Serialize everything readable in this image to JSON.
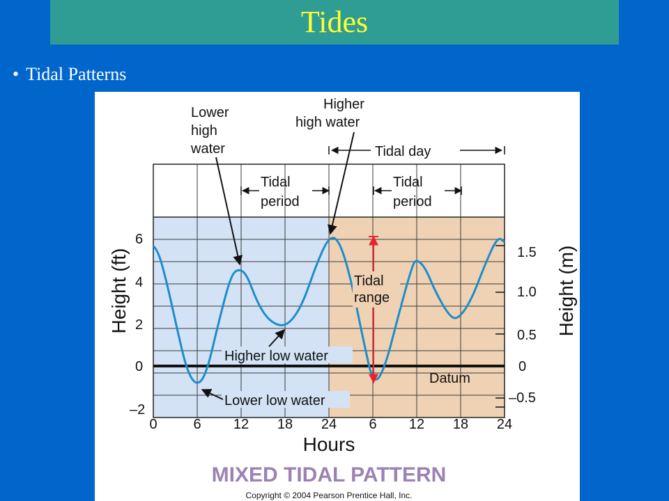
{
  "slide": {
    "title": "Tides",
    "bullet": "Tidal Patterns"
  },
  "figure": {
    "annotations": {
      "lower_high_water": [
        "Lower",
        "high",
        "water"
      ],
      "higher_high_water": [
        "Higher",
        "high water"
      ],
      "tidal_day": "Tidal day",
      "tidal_period": [
        "Tidal",
        "period"
      ],
      "tidal_range": [
        "Tidal",
        "range"
      ],
      "higher_low_water": "Higher low water",
      "lower_low_water": "Lower low water",
      "datum": "Datum"
    },
    "left_axis_label": "Height (ft)",
    "right_axis_label": "Height (m)",
    "x_axis_label": "Hours",
    "left_ticks": [
      "6",
      "4",
      "2",
      "0",
      "–2"
    ],
    "right_ticks": [
      "1.5",
      "1.0",
      "0.5",
      "0",
      "–0.5"
    ],
    "x_ticks": [
      "0",
      "6",
      "12",
      "18",
      "24",
      "6",
      "12",
      "18",
      "24"
    ],
    "pattern_title": "MIXED TIDAL PATTERN",
    "copyright": "Copyright © 2004 Pearson Prentice Hall, Inc."
  },
  "colors": {
    "background": "#0066cc",
    "title_bar": "#2f9d93",
    "title_text": "#ffff33",
    "day1_fill": "#d3e3f5",
    "day2_fill": "#efd2b3",
    "tide_curve": "#1b8dcb",
    "range_arrow": "#e8232f",
    "pattern_title": "#9c82b4"
  }
}
